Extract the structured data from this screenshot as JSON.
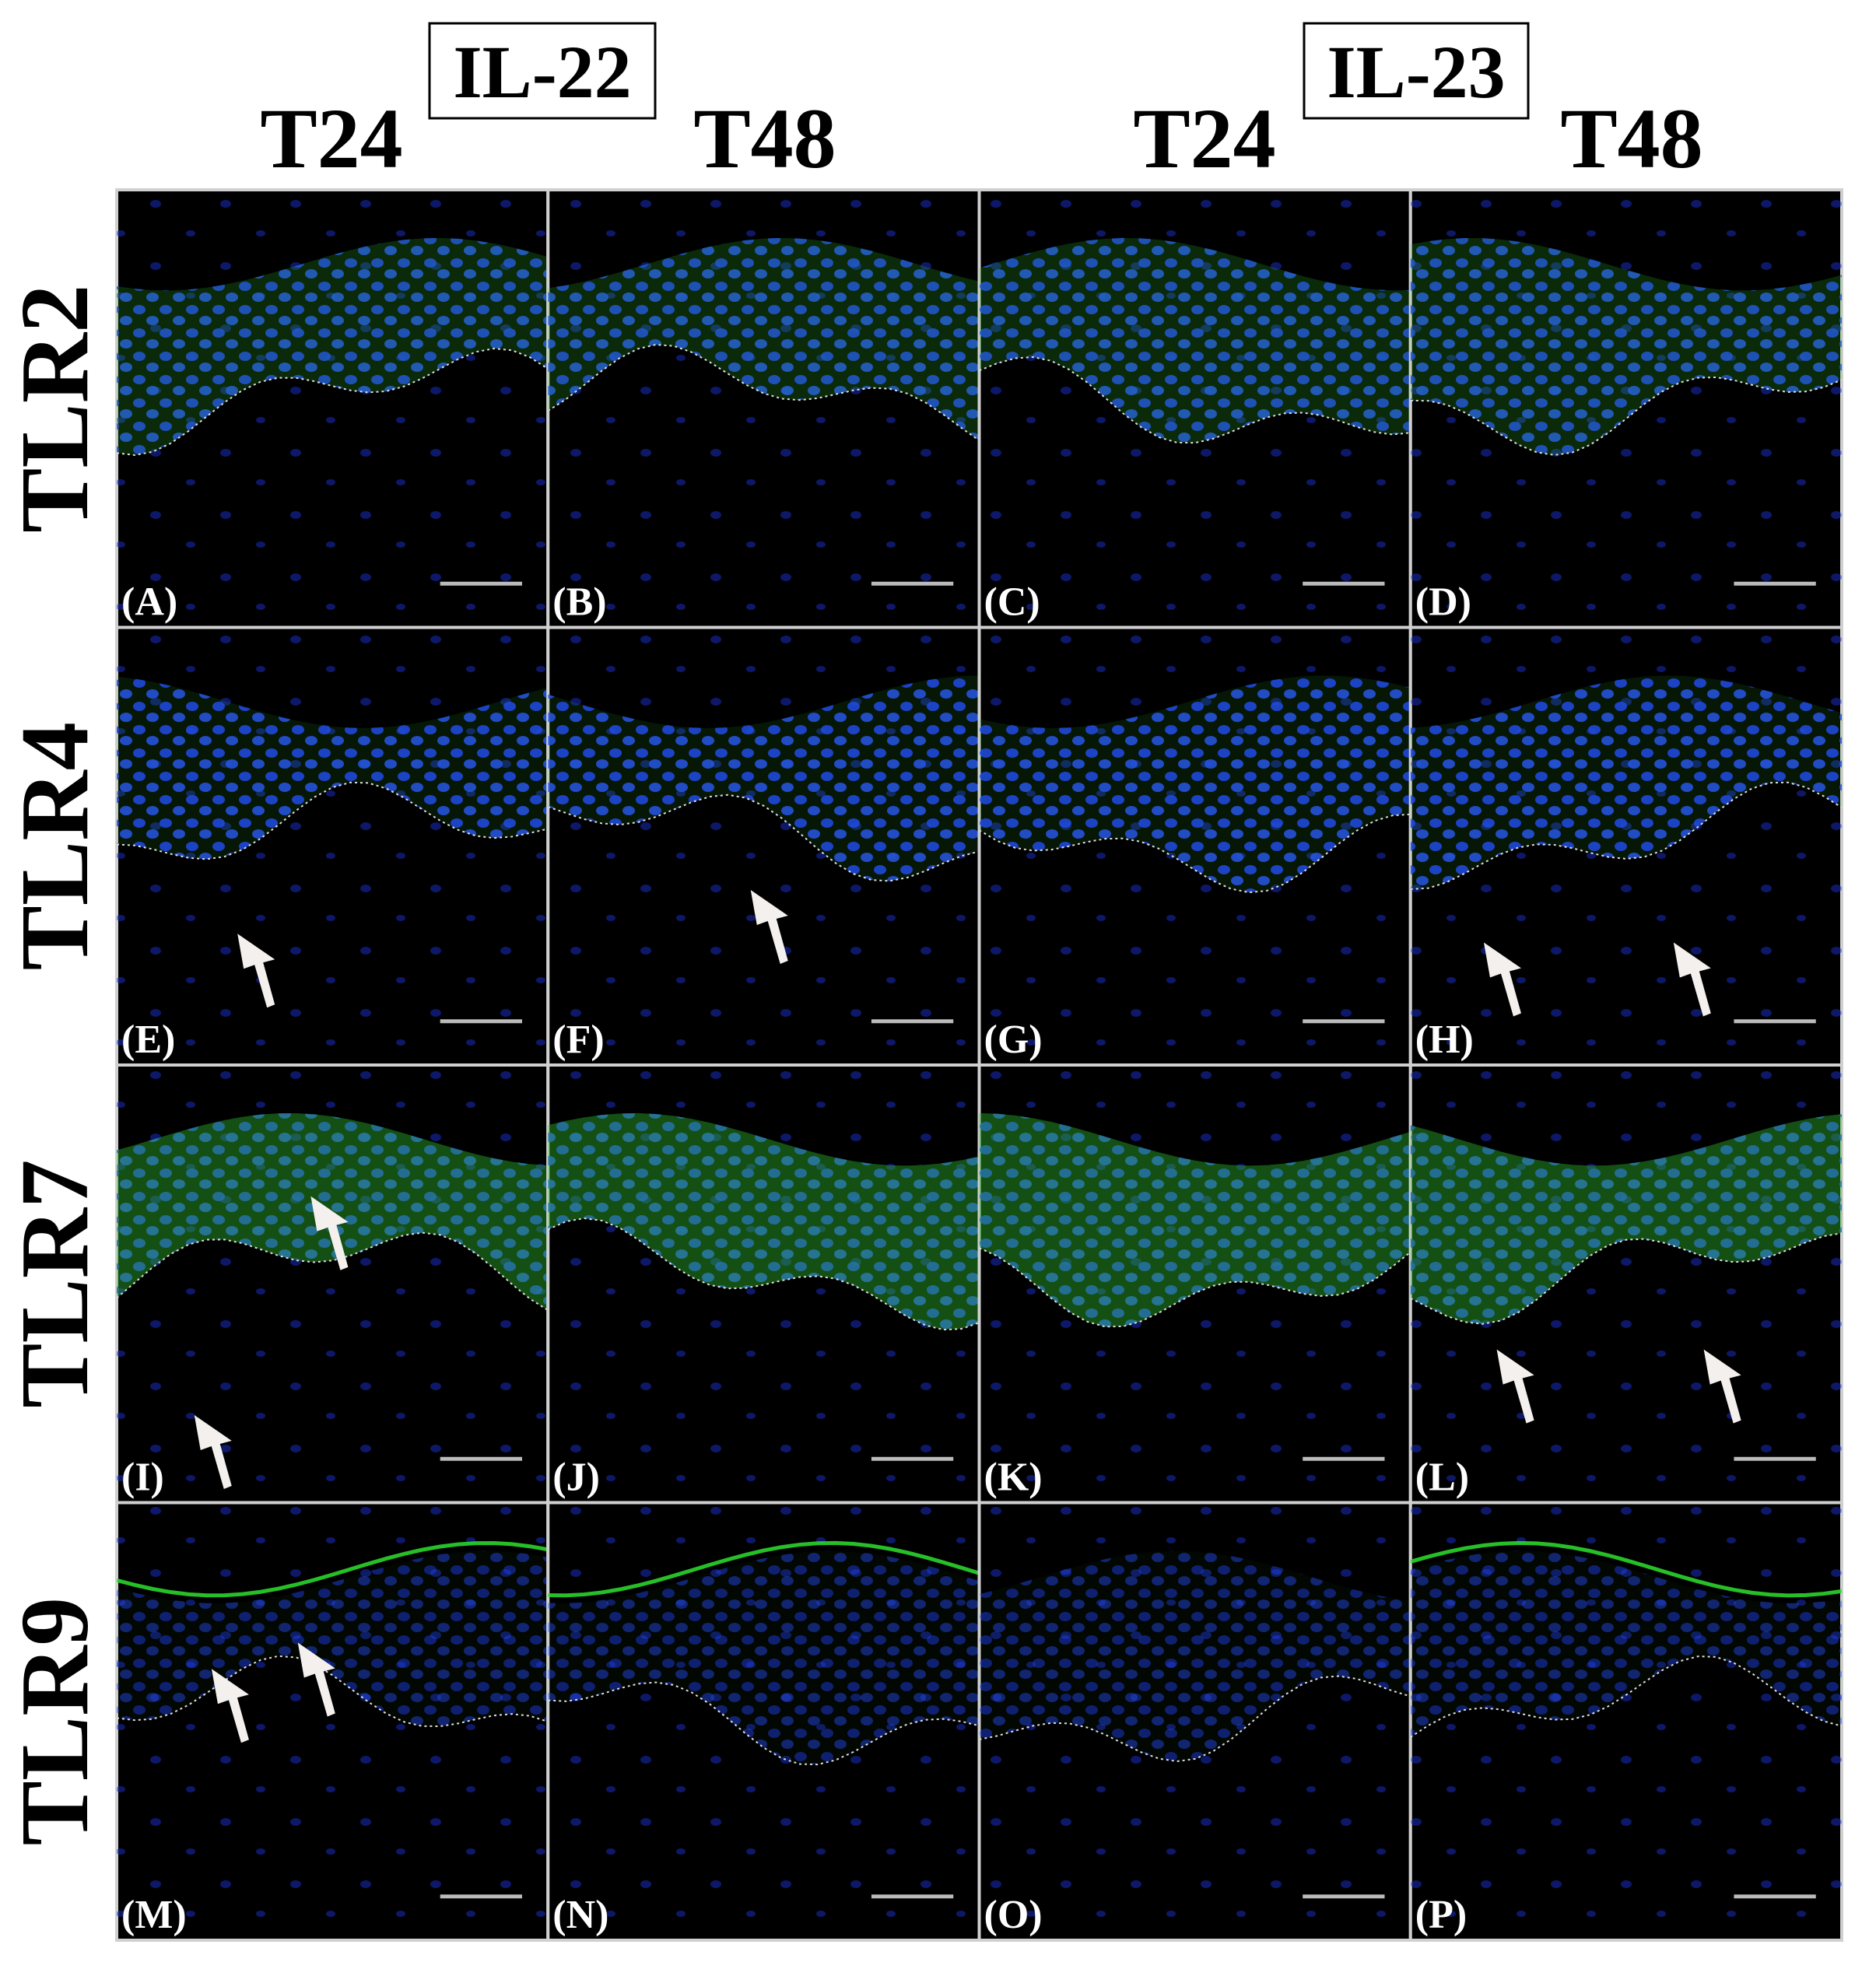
{
  "header": {
    "groups": [
      {
        "label": "IL-22",
        "timepoints": [
          "T24",
          "T48"
        ]
      },
      {
        "label": "IL-23",
        "timepoints": [
          "T24",
          "T48"
        ]
      }
    ]
  },
  "rows": [
    {
      "label": "TLR2",
      "panels": [
        "(A)",
        "(B)",
        "(C)",
        "(D)"
      ]
    },
    {
      "label": "TLR4",
      "panels": [
        "(E)",
        "(F)",
        "(G)",
        "(H)"
      ]
    },
    {
      "label": "TLR7",
      "panels": [
        "(I)",
        "(J)",
        "(K)",
        "(L)"
      ]
    },
    {
      "label": "TLR9",
      "panels": [
        "(M)",
        "(N)",
        "(O)",
        "(P)"
      ]
    }
  ]
}
